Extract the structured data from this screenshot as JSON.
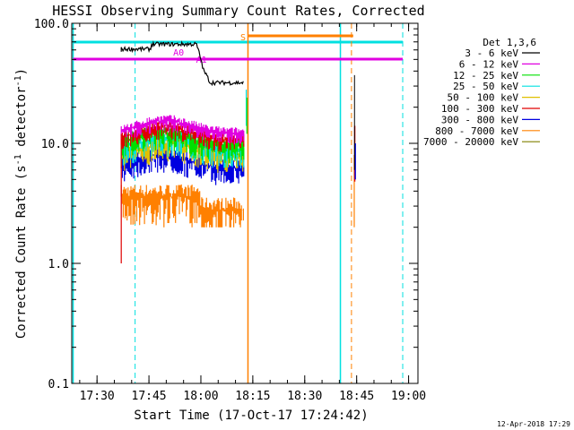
{
  "chart_data": {
    "type": "line",
    "title": "HESSI Observing Summary Count Rates, Corrected",
    "xlabel": "Start Time (17-Oct-17 17:24:42)",
    "ylabel_main": "Corrected Count Rate (s",
    "ylabel_sup1": "-1",
    "ylabel_mid": " detector",
    "ylabel_sup2": "-1",
    "ylabel_end": ")",
    "y_scale": "log",
    "ylim": [
      0.1,
      100
    ],
    "y_ticks": [
      {
        "value": 0.1,
        "label": "0.1"
      },
      {
        "value": 1,
        "label": "1.0"
      },
      {
        "value": 10,
        "label": "10.0"
      },
      {
        "value": 100,
        "label": "100.0"
      }
    ],
    "xlim_minutes": [
      -2,
      98
    ],
    "x_ticks": [
      {
        "value": 5.3,
        "label": "17:30"
      },
      {
        "value": 20.3,
        "label": "17:45"
      },
      {
        "value": 35.3,
        "label": "18:00"
      },
      {
        "value": 50.3,
        "label": "18:15"
      },
      {
        "value": 65.3,
        "label": "18:30"
      },
      {
        "value": 80.3,
        "label": "18:45"
      },
      {
        "value": 95.3,
        "label": "19:00"
      }
    ],
    "legend_title": "Det 1,3,6",
    "legend_position": "right",
    "series": [
      {
        "name": "3 - 6 keV",
        "color": "#000000"
      },
      {
        "name": "6 - 12 keV",
        "color": "#e000e0"
      },
      {
        "name": "12 - 25 keV",
        "color": "#00e000"
      },
      {
        "name": "25 - 50 keV",
        "color": "#00e0e0"
      },
      {
        "name": "50 - 100 keV",
        "color": "#e0c000"
      },
      {
        "name": "100 - 300 keV",
        "color": "#e00000"
      },
      {
        "name": "300 - 800 keV",
        "color": "#0000e0"
      },
      {
        "name": "800 - 7000 keV",
        "color": "#ff8000"
      },
      {
        "name": "7000 - 20000 keV",
        "color": "#808000"
      }
    ],
    "annotations": [
      {
        "text": "S",
        "color": "#ff8000"
      },
      {
        "text": "A0",
        "color": "#e000e0"
      },
      {
        "text": "A1",
        "color": "#e000e0"
      }
    ],
    "timestamp": "12-Apr-2018 17:29"
  }
}
